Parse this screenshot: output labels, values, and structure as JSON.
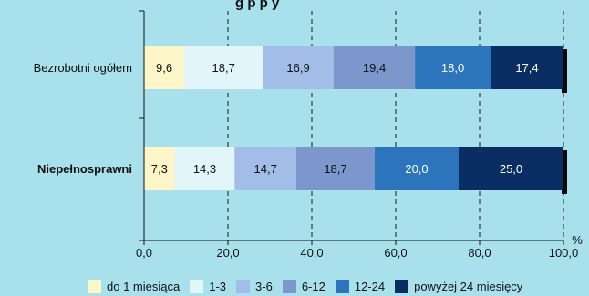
{
  "chart_data": {
    "type": "bar",
    "orientation": "horizontal",
    "stacked": true,
    "title_fragment": "g        p                 p   y",
    "categories": [
      "Bezrobotni ogółem",
      "Niepełnosprawni"
    ],
    "category_bold": [
      false,
      true
    ],
    "series": [
      {
        "name": "do 1 miesiąca",
        "values": [
          9.6,
          7.3
        ],
        "color": "#fdf6c8",
        "label_color": "#111111"
      },
      {
        "name": "1-3",
        "values": [
          18.7,
          14.3
        ],
        "color": "#e2f6fa",
        "label_color": "#111111"
      },
      {
        "name": "3-6",
        "values": [
          16.9,
          14.7
        ],
        "color": "#a2bde8",
        "label_color": "#111111"
      },
      {
        "name": "6-12",
        "values": [
          19.4,
          18.7
        ],
        "color": "#7c97cc",
        "label_color": "#111111"
      },
      {
        "name": "12-24",
        "values": [
          18.0,
          20.0
        ],
        "color": "#2c74bc",
        "label_color": "#ffffff"
      },
      {
        "name": "powyżej 24 miesięcy",
        "values": [
          17.4,
          25.0
        ],
        "color": "#0a2d63",
        "label_color": "#ffffff"
      }
    ],
    "value_labels": [
      [
        "9,6",
        "18,7",
        "16,9",
        "19,4",
        "18,0",
        "17,4"
      ],
      [
        "7,3",
        "14,3",
        "14,7",
        "18,7",
        "20,0",
        "25,0"
      ]
    ],
    "xlim": [
      0,
      100
    ],
    "xticks": [
      0,
      20,
      40,
      60,
      80,
      100
    ],
    "xtick_labels": [
      "0,0",
      "20,0",
      "40,0",
      "60,0",
      "80,0",
      "100,0"
    ],
    "xunit": "%",
    "grid": true,
    "legend_position": "bottom"
  }
}
